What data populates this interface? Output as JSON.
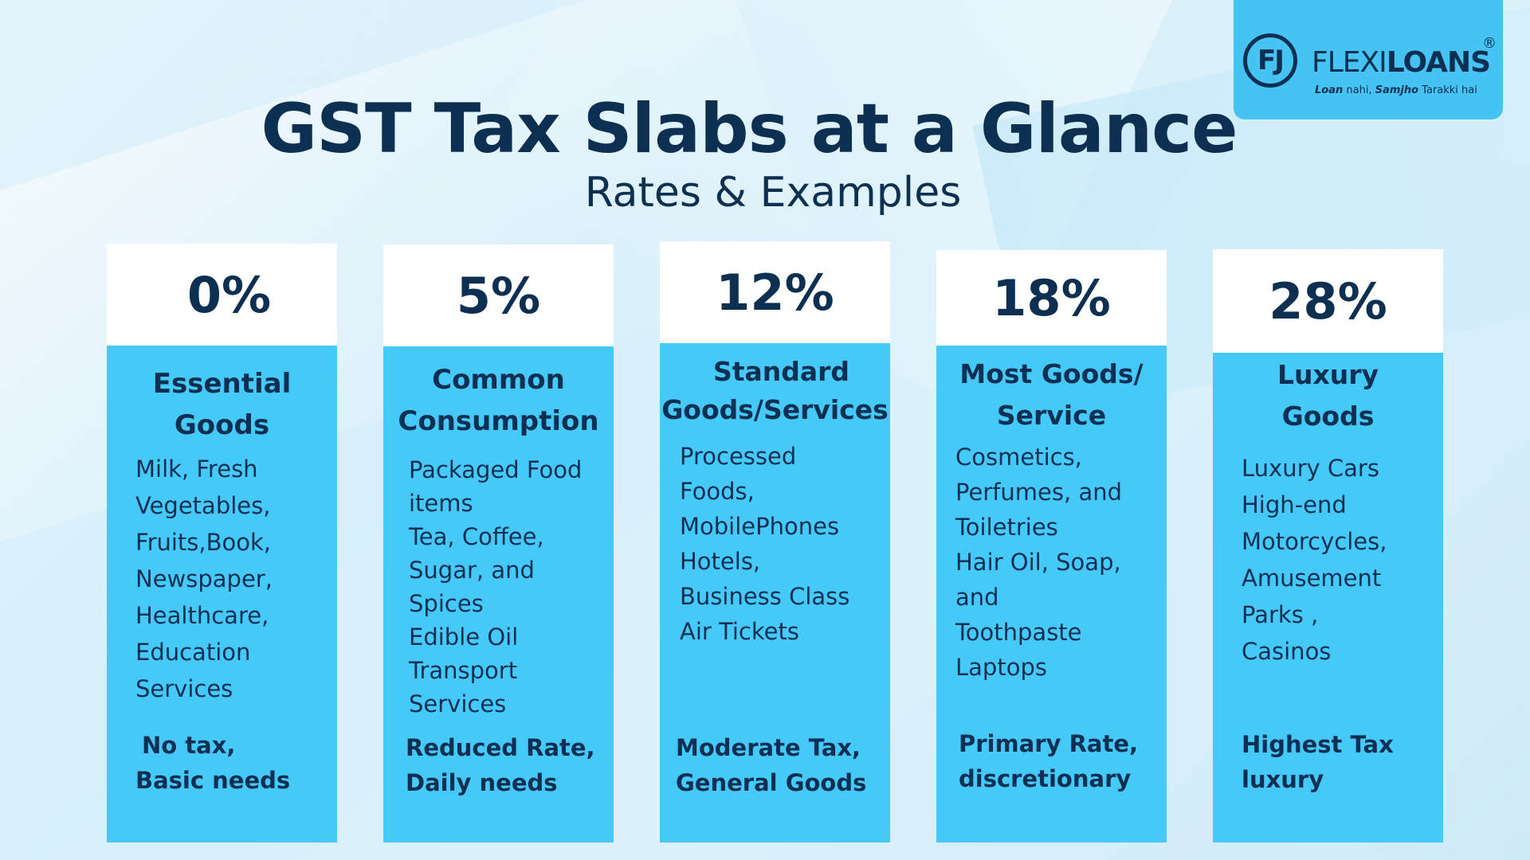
{
  "logo": {
    "mark": "FJ",
    "name_light": "FLEXI",
    "name_bold": "LOANS",
    "registered": "®",
    "tagline_part1": "Loan",
    "tagline_part2": " nahi, ",
    "tagline_part3": "Samjho",
    "tagline_part4": " Tarakki hai"
  },
  "title": "GST Tax Slabs at a Glance",
  "subtitle": "Rates & Examples",
  "colors": {
    "navy": "#0d2f52",
    "card_blue": "#45c9f8",
    "logo_blue": "#45c4f3",
    "header_white": "#ffffff"
  },
  "slabs": [
    {
      "rate": "0%",
      "category": [
        "Essential",
        "Goods"
      ],
      "items": [
        "Milk, Fresh",
        "Vegetables,",
        "Fruits,Book,",
        "Newspaper,",
        "Healthcare,",
        "Education",
        "Services"
      ],
      "note": [
        "No tax,",
        "Basic needs"
      ]
    },
    {
      "rate": "5%",
      "category": [
        "Common",
        "Consumption"
      ],
      "items": [
        "Packaged Food",
        "items",
        "Tea, Coffee,",
        "Sugar, and",
        "Spices",
        "Edible Oil",
        "Transport",
        "Services"
      ],
      "note": [
        "Reduced Rate,",
        "Daily needs"
      ]
    },
    {
      "rate": "12%",
      "category": [
        "Standard",
        "Goods/Services"
      ],
      "items": [
        "Processed",
        "Foods,",
        "MobilePhones",
        "Hotels,",
        "Business Class",
        "Air Tickets"
      ],
      "note": [
        "Moderate Tax,",
        "General Goods"
      ]
    },
    {
      "rate": "18%",
      "category": [
        "Most Goods/",
        "Service"
      ],
      "items": [
        "Cosmetics,",
        "Perfumes, and",
        "Toiletries",
        "Hair Oil, Soap,",
        "and",
        "Toothpaste",
        "Laptops"
      ],
      "note": [
        "Primary Rate,",
        "discretionary"
      ]
    },
    {
      "rate": "28%",
      "category": [
        "Luxury",
        "Goods"
      ],
      "items": [
        "Luxury Cars",
        "High-end",
        "Motorcycles,",
        "Amusement",
        "Parks ,",
        "Casinos"
      ],
      "note": [
        "Highest Tax",
        "luxury"
      ]
    }
  ]
}
